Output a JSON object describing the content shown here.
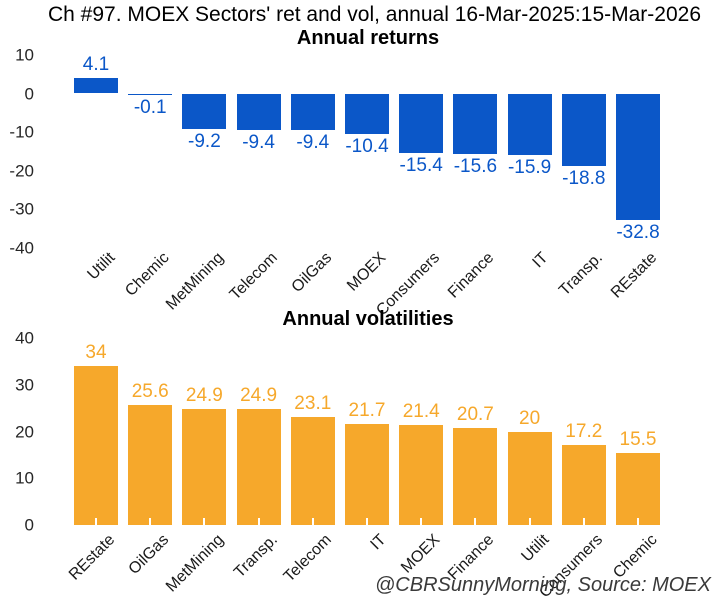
{
  "title": "Ch #97. MOEX Sectors' ret and vol, annual 16-Mar-2025:15-Mar-2026",
  "footer_credit": "@CBRSunnyMorning, Source: MOEX",
  "colors": {
    "returns_blue": "#0B57C8",
    "volatility_orange": "#F6A82B",
    "axis_text": "#262626",
    "footer_text": "#3a3a3a"
  },
  "chart_data": [
    {
      "type": "bar",
      "title": "Annual returns",
      "categories": [
        "Utilit",
        "Chemic",
        "MetMining",
        "Telecom",
        "OilGas",
        "MOEX",
        "Consumers",
        "Finance",
        "IT",
        "Transp.",
        "REstate"
      ],
      "values": [
        4.1,
        -0.1,
        -9.2,
        -9.4,
        -9.4,
        -10.4,
        -15.4,
        -15.6,
        -15.9,
        -18.8,
        -32.8
      ],
      "ylim": [
        -40,
        10
      ],
      "yticks": [
        10,
        0,
        -10,
        -20,
        -30,
        -40
      ],
      "grid": false,
      "legend": "none",
      "bar_color": "#0B57C8",
      "label_color": "#0B57C8"
    },
    {
      "type": "bar",
      "title": "Annual volatilities",
      "categories": [
        "REstate",
        "OilGas",
        "MetMining",
        "Transp.",
        "Telecom",
        "IT",
        "MOEX",
        "Finance",
        "Utilit",
        "Consumers",
        "Chemic"
      ],
      "values": [
        34,
        25.6,
        24.9,
        24.9,
        23.1,
        21.7,
        21.4,
        20.7,
        20,
        17.2,
        15.5
      ],
      "ylim": [
        0,
        40
      ],
      "yticks": [
        40,
        30,
        20,
        10,
        0
      ],
      "grid": false,
      "legend": "none",
      "bar_color": "#F6A82B",
      "label_color": "#F6A82B"
    }
  ]
}
